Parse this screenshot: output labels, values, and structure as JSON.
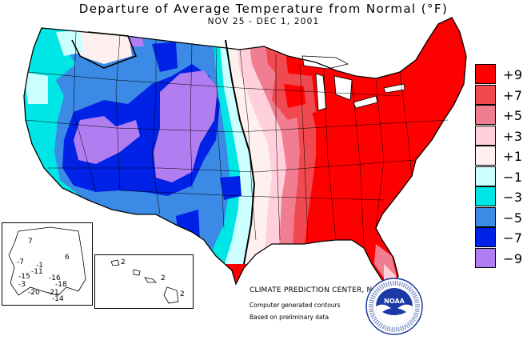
{
  "title": "Departure of Average Temperature from Normal (°F)",
  "subtitle": "NOV 25 - DEC  1, 2001",
  "legend": [
    {
      "label": "+9",
      "color": "#ff0000"
    },
    {
      "label": "+7",
      "color": "#f04a50"
    },
    {
      "label": "+5",
      "color": "#f07d90"
    },
    {
      "label": "+3",
      "color": "#ffd0dc"
    },
    {
      "label": "+1",
      "color": "#fff0f0"
    },
    {
      "label": "−1",
      "color": "#ccffff"
    },
    {
      "label": "−3",
      "color": "#00e6e6"
    },
    {
      "label": "−5",
      "color": "#3a8ae6"
    },
    {
      "label": "−7",
      "color": "#0022e6"
    },
    {
      "label": "−9",
      "color": "#b07ef0"
    }
  ],
  "credits": {
    "center": "CLIMATE PREDICTION CENTER, NOAA",
    "contours": "Computer generated contours",
    "preliminary": "Based on preliminary data"
  },
  "logo": {
    "text": "NOAA",
    "ring_text": "NATIONAL OCEANIC AND ATMOSPHERIC ADMINISTRATION · U.S. DEPARTMENT OF COMMERCE"
  },
  "alaska_values": [
    "7",
    "6",
    "-1",
    "-7",
    "-11",
    "-15",
    "-16",
    "-3",
    "-18",
    "-20",
    "-21",
    "-14"
  ],
  "hawaii_values": [
    "2",
    "2",
    "2"
  ]
}
